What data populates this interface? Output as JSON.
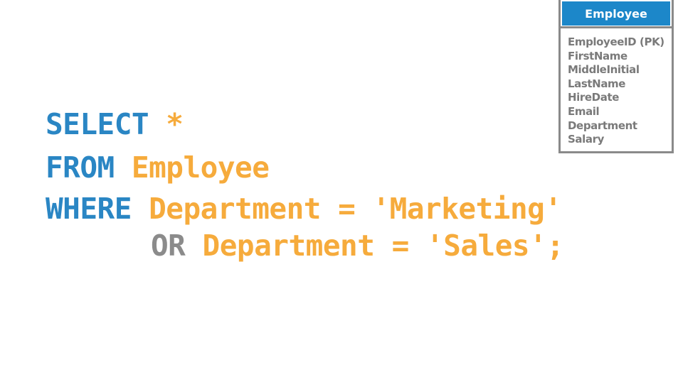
{
  "sql": {
    "line1": {
      "keyword": "SELECT",
      "rest": " *"
    },
    "line2": {
      "keyword": "FROM",
      "rest": " Employee"
    },
    "line3": {
      "keyword": "WHERE",
      "rest": " Department = 'Marketing'"
    },
    "line4": {
      "keyword": "OR",
      "rest": " Department = 'Sales';"
    }
  },
  "table": {
    "title": "Employee",
    "fields": [
      "EmployeeID (PK)",
      "FirstName",
      "MiddleInitial",
      "LastName",
      "HireDate",
      "Email",
      "Department",
      "Salary"
    ]
  },
  "colors": {
    "keyword": "#2a86c4",
    "identifier": "#f6ab3c",
    "operator_keyword": "#8b8b8b",
    "table_header_bg": "#1c87c9",
    "table_border": "#8a8a8a",
    "field_text": "#7a7a7a"
  }
}
